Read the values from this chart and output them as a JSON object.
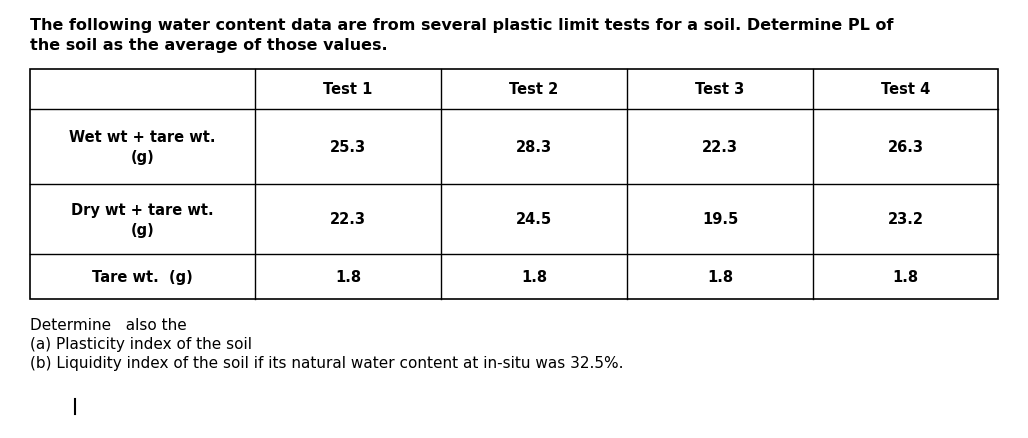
{
  "title_line1": "The following water content data are from several plastic limit tests for a soil. Determine PL of",
  "title_line2": "the soil as the average of those values.",
  "col_headers": [
    "",
    "Test 1",
    "Test 2",
    "Test 3",
    "Test 4"
  ],
  "row1_label_line1": "Wet wt + tare wt.",
  "row1_label_line2": "(g)",
  "row2_label_line1": "Dry wt + tare wt.",
  "row2_label_line2": "(g)",
  "row3_label": "Tare wt.  (g)",
  "row1_values": [
    "25.3",
    "28.3",
    "22.3",
    "26.3"
  ],
  "row2_values": [
    "22.3",
    "24.5",
    "19.5",
    "23.2"
  ],
  "row3_values": [
    "1.8",
    "1.8",
    "1.8",
    "1.8"
  ],
  "footer_line1": "Determine   also the",
  "footer_line2": "(a) Plasticity index of the soil",
  "footer_line3": "(b) Liquidity index of the soil if its natural water content at in-situ was 32.5%.",
  "bg_color": "#ffffff",
  "text_color": "#000000",
  "title_fontsize": 11.5,
  "table_fontsize": 10.5,
  "footer_fontsize": 11
}
